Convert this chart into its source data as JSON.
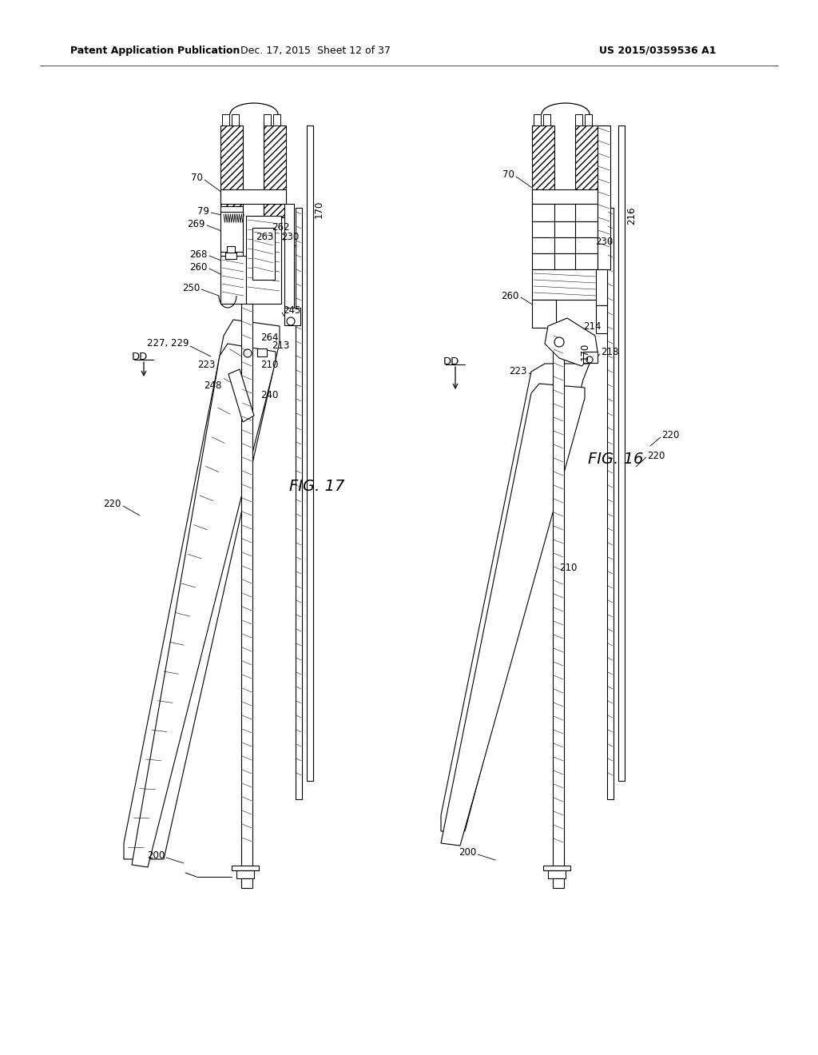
{
  "background_color": "#ffffff",
  "header_left": "Patent Application Publication",
  "header_center": "Dec. 17, 2015  Sheet 12 of 37",
  "header_right": "US 2015/0359536 A1",
  "fig17_label": "FIG. 17",
  "fig16_label": "FIG. 16",
  "header_fontsize": 9,
  "fig_label_fontsize": 14,
  "ref_fontsize": 8.5,
  "dd_fontsize": 9.5
}
